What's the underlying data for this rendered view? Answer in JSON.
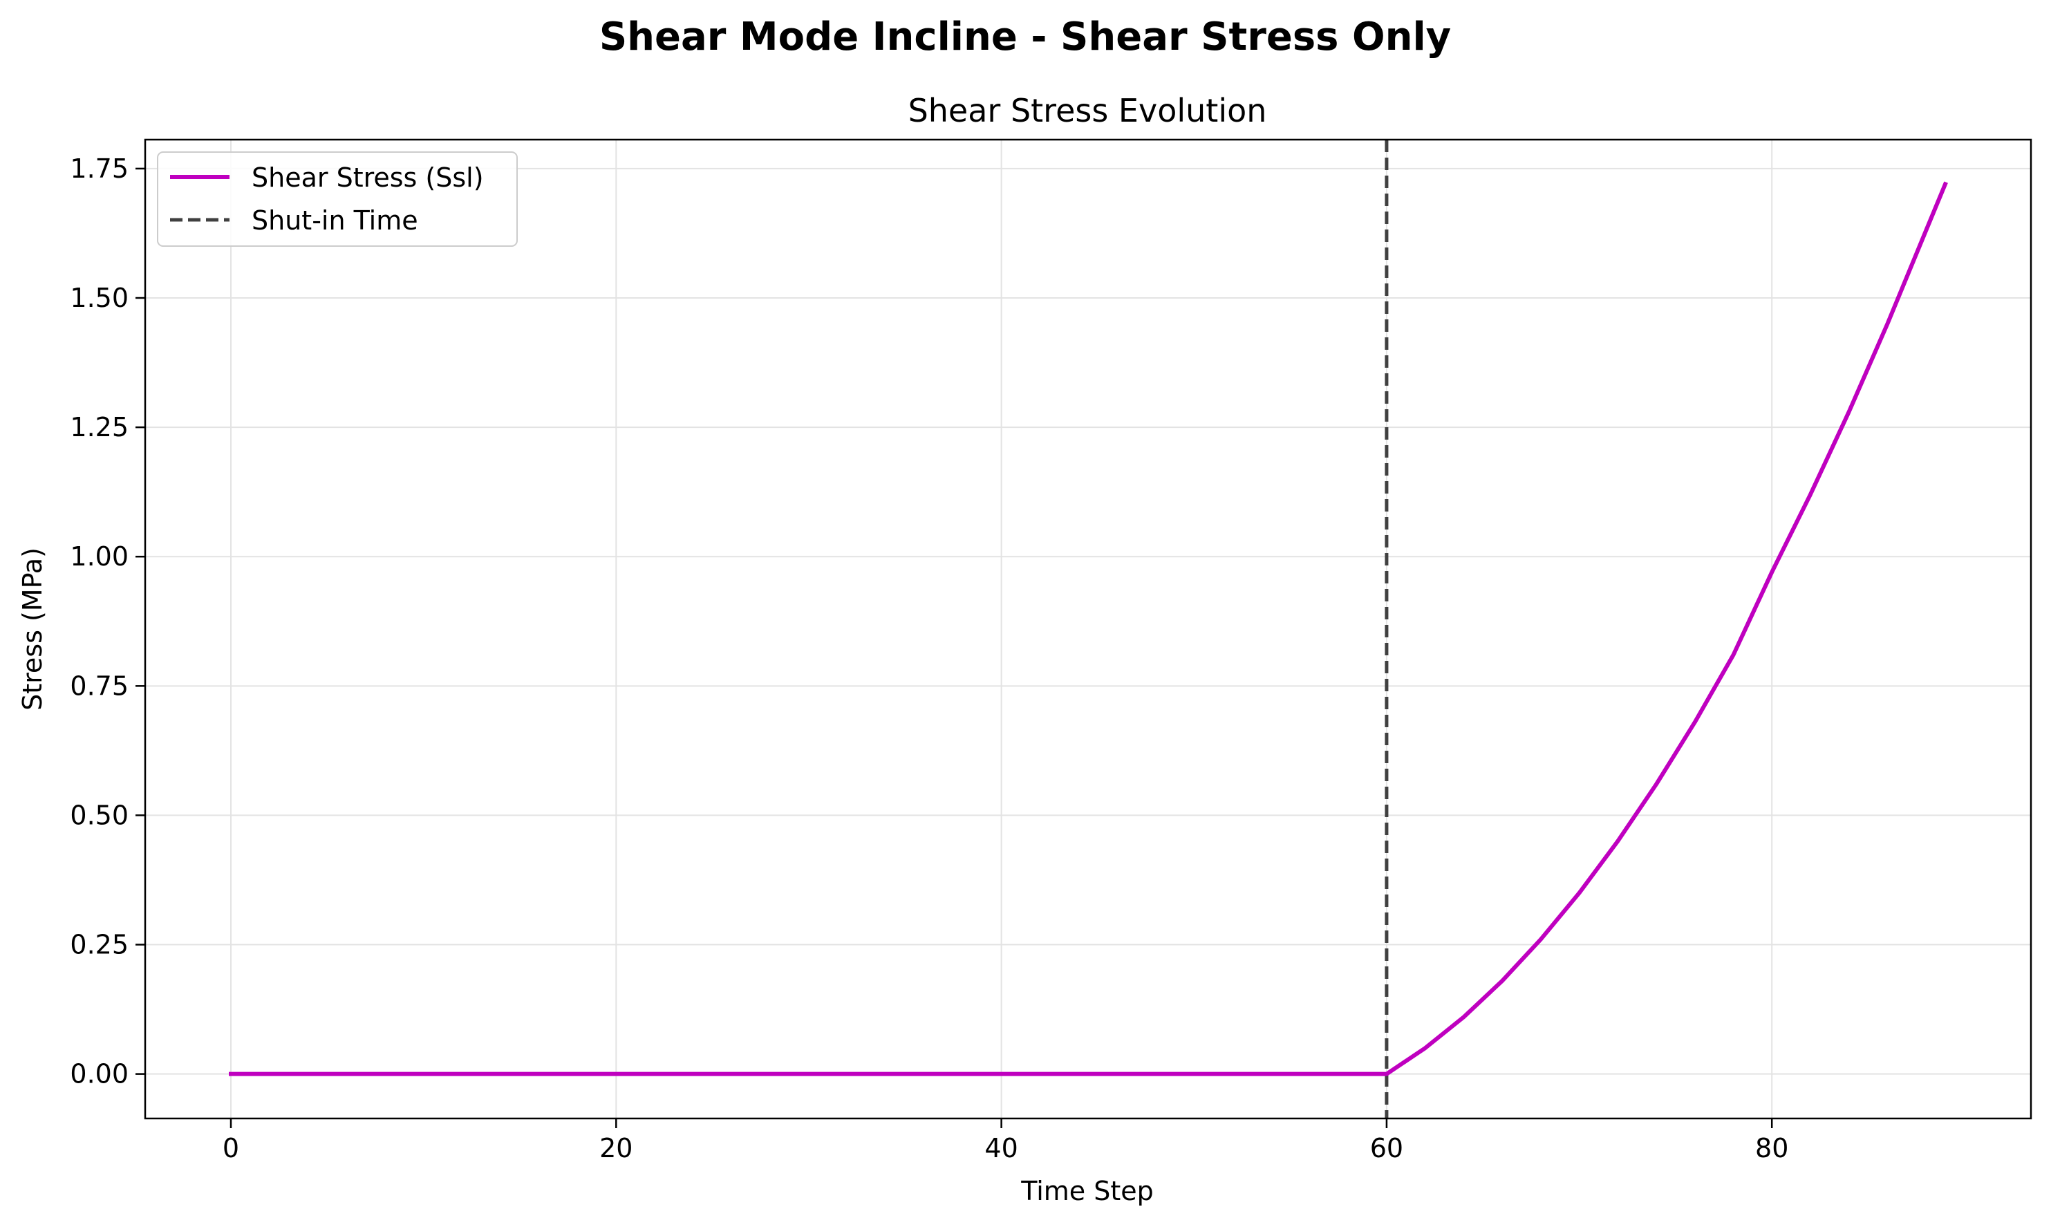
{
  "figure": {
    "suptitle": "Shear Mode Incline - Shear Stress Only"
  },
  "chart_data": {
    "type": "line",
    "title": "Shear Stress Evolution",
    "xlabel": "Time Step",
    "ylabel": "Stress (MPa)",
    "xlim": [
      -4.45,
      93.45
    ],
    "ylim": [
      -0.086,
      1.806
    ],
    "xticks": [
      0,
      20,
      40,
      60,
      80
    ],
    "xtick_labels": [
      "0",
      "20",
      "40",
      "60",
      "80"
    ],
    "yticks": [
      0.0,
      0.25,
      0.5,
      0.75,
      1.0,
      1.25,
      1.5,
      1.75
    ],
    "ytick_labels": [
      "0.00",
      "0.25",
      "0.50",
      "0.75",
      "1.00",
      "1.25",
      "1.50",
      "1.75"
    ],
    "grid": true,
    "legend_position": "top-left",
    "series": [
      {
        "name": "Shear Stress (Ssl)",
        "color": "#bf00bf",
        "style": "solid",
        "x": [
          0,
          5,
          10,
          15,
          20,
          25,
          30,
          35,
          40,
          45,
          50,
          55,
          60,
          62,
          64,
          66,
          68,
          70,
          72,
          74,
          76,
          78,
          80,
          82,
          84,
          86,
          88,
          89
        ],
        "y": [
          0,
          0,
          0,
          0,
          0,
          0,
          0,
          0,
          0,
          0,
          0,
          0,
          0,
          0.05,
          0.11,
          0.18,
          0.26,
          0.35,
          0.45,
          0.56,
          0.68,
          0.81,
          0.97,
          1.12,
          1.28,
          1.45,
          1.63,
          1.72
        ]
      }
    ],
    "vlines": [
      {
        "name": "Shut-in Time",
        "x": 60,
        "color": "#404040",
        "style": "dashed"
      }
    ]
  }
}
